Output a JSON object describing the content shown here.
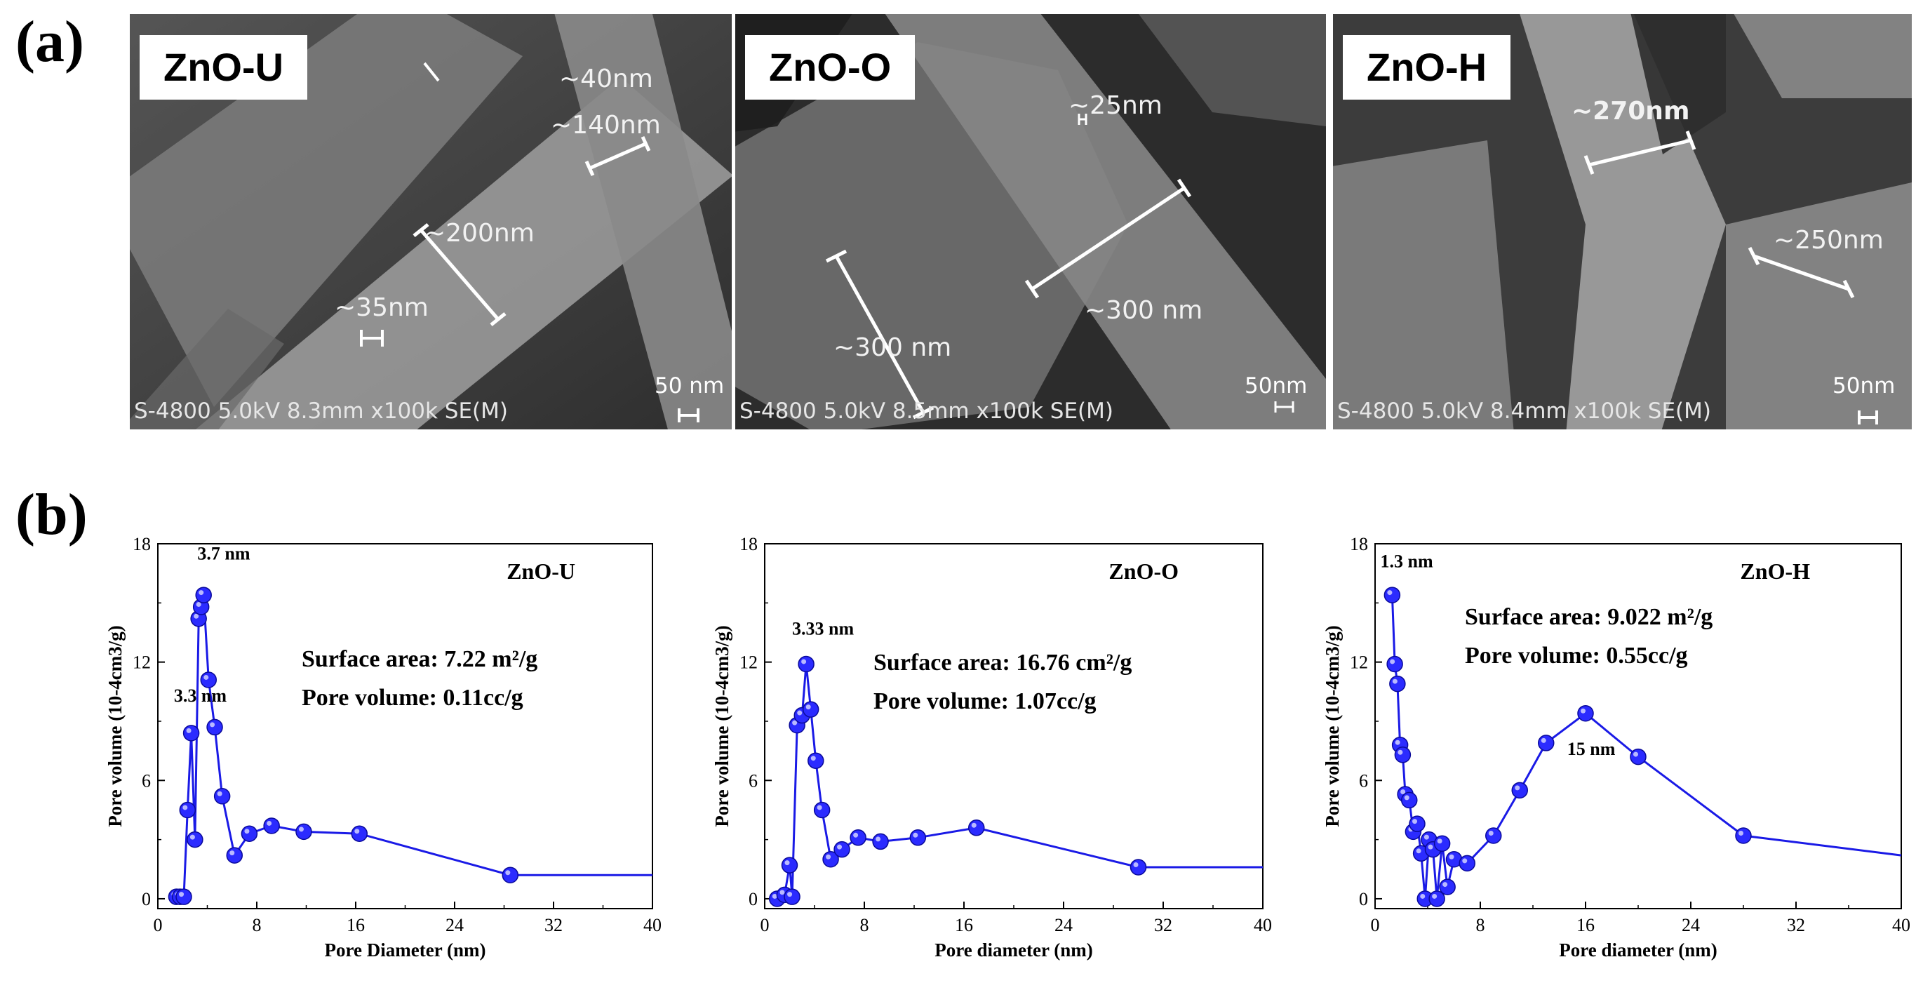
{
  "panel_labels": {
    "a": "(a)",
    "b": "(b)"
  },
  "sem_panels": [
    {
      "label": "ZnO-U",
      "info": "S-4800 5.0kV 8.3mm x100k SE(M)",
      "scale": "50 nm",
      "annotations": [
        "~40nm",
        "~140nm",
        "~200nm",
        "~35nm"
      ]
    },
    {
      "label": "ZnO-O",
      "info": "S-4800 5.0kV 8.5mm x100k SE(M)",
      "scale": "50nm",
      "annotations": [
        "~25nm",
        "~300 nm",
        "~300 nm"
      ]
    },
    {
      "label": "ZnO-H",
      "info": "S-4800 5.0kV 8.4mm x100k SE(M)",
      "scale": "50nm",
      "annotations": [
        "~270nm",
        "~250nm"
      ]
    }
  ],
  "colors": {
    "series": "#1a1ae6",
    "marker": "#2b2bff",
    "axis": "#000000"
  },
  "chart_data": [
    {
      "type": "line",
      "title": "ZnO-U",
      "xlabel": "Pore Diameter (nm)",
      "ylabel": "Pore volume (10-4cm3/g)",
      "xlim": [
        0,
        40
      ],
      "ylim": [
        -0.5,
        18
      ],
      "xticks": [
        0,
        8,
        16,
        24,
        32,
        40
      ],
      "yticks": [
        0,
        6,
        12,
        18
      ],
      "series": [
        {
          "name": "ZnO-U",
          "x": [
            1.5,
            1.8,
            2.1,
            2.4,
            2.7,
            3.0,
            3.3,
            3.5,
            3.7,
            4.1,
            4.6,
            5.2,
            6.2,
            7.4,
            9.2,
            11.8,
            16.3,
            28.5,
            40
          ],
          "y": [
            0.1,
            0.1,
            0.1,
            4.5,
            8.4,
            3.0,
            14.2,
            14.8,
            15.4,
            11.1,
            8.7,
            5.2,
            2.2,
            3.3,
            3.7,
            3.4,
            3.3,
            1.2,
            1.2
          ],
          "markers": 18
        }
      ],
      "annotations": [
        {
          "text": "3.7 nm",
          "x": 3.2,
          "y": 17.2
        },
        {
          "text": "3.3 nm",
          "x": 1.3,
          "y": 10.0
        }
      ],
      "info_lines": [
        "Surface area: 7.22 m²/g",
        "Pore volume: 0.11cc/g"
      ]
    },
    {
      "type": "line",
      "title": "ZnO-O",
      "xlabel": "Pore diameter (nm)",
      "ylabel": "Pore volume (10-4cm3/g)",
      "xlim": [
        0,
        40
      ],
      "ylim": [
        -0.5,
        18
      ],
      "xticks": [
        0,
        8,
        16,
        24,
        32,
        40
      ],
      "yticks": [
        0,
        6,
        12,
        18
      ],
      "series": [
        {
          "name": "ZnO-O",
          "x": [
            1.0,
            1.6,
            2.0,
            2.2,
            2.6,
            3.0,
            3.33,
            3.7,
            4.1,
            4.6,
            5.3,
            6.2,
            7.5,
            9.3,
            12.3,
            17.0,
            30.0,
            40
          ],
          "y": [
            0.0,
            0.2,
            1.7,
            0.1,
            8.8,
            9.3,
            11.9,
            9.6,
            7.0,
            4.5,
            2.0,
            2.5,
            3.1,
            2.9,
            3.1,
            3.6,
            1.6,
            1.6
          ],
          "markers": 17
        }
      ],
      "annotations": [
        {
          "text": "3.33 nm",
          "x": 2.2,
          "y": 13.4
        }
      ],
      "info_lines": [
        "Surface area: 16.76 cm²/g",
        "Pore volume: 1.07cc/g"
      ]
    },
    {
      "type": "line",
      "title": "ZnO-H",
      "xlabel": "Pore diameter (nm)",
      "ylabel": "Pore volume (10-4cm3/g)",
      "xlim": [
        0,
        40
      ],
      "ylim": [
        -0.5,
        18
      ],
      "xticks": [
        0,
        8,
        16,
        24,
        32,
        40
      ],
      "yticks": [
        0,
        6,
        12,
        18
      ],
      "series": [
        {
          "name": "ZnO-H",
          "x": [
            1.3,
            1.5,
            1.7,
            1.9,
            2.1,
            2.3,
            2.6,
            2.9,
            3.2,
            3.5,
            3.8,
            4.1,
            4.4,
            4.7,
            5.1,
            5.5,
            6.0,
            7.0,
            9.0,
            11.0,
            13.0,
            16.0,
            20.0,
            28.0,
            40
          ],
          "y": [
            15.4,
            11.9,
            10.9,
            7.8,
            7.3,
            5.3,
            5.0,
            3.4,
            3.8,
            2.3,
            0.0,
            3.0,
            2.5,
            0.0,
            2.8,
            0.6,
            2.0,
            1.8,
            3.2,
            5.5,
            7.9,
            9.4,
            7.2,
            3.2,
            2.2
          ],
          "markers": 24
        }
      ],
      "annotations": [
        {
          "text": "1.3 nm",
          "x": 0.4,
          "y": 16.8
        },
        {
          "text": "15 nm",
          "x": 14.6,
          "y": 7.3
        }
      ],
      "info_lines": [
        "Surface area: 9.022 m²/g",
        "Pore volume: 0.55cc/g"
      ]
    }
  ]
}
